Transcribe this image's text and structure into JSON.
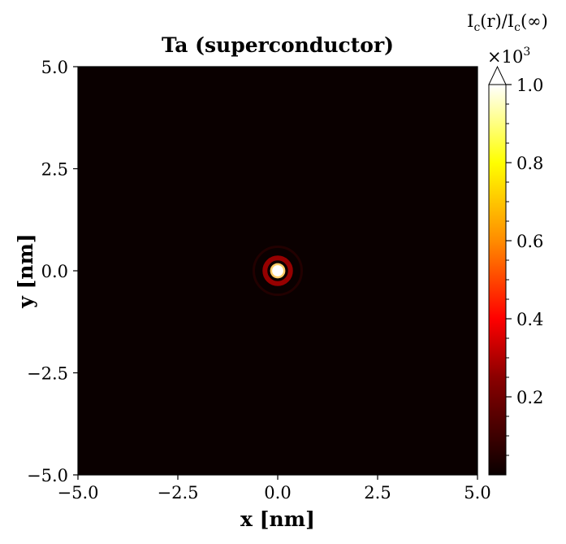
{
  "chart_data": {
    "type": "heatmap",
    "title": "Ta (superconductor)",
    "xlabel": "x [nm]",
    "ylabel": "y [nm]",
    "xlim": [
      -5.0,
      5.0
    ],
    "ylim": [
      -5.0,
      5.0
    ],
    "x_ticks": [
      "−5.0",
      "−2.5",
      "0.0",
      "2.5",
      "5.0"
    ],
    "x_tick_values": [
      -5.0,
      -2.5,
      0.0,
      2.5,
      5.0
    ],
    "y_ticks": [
      "5.0",
      "2.5",
      "0.0",
      "−2.5",
      "−5.0"
    ],
    "y_tick_values": [
      5.0,
      2.5,
      0.0,
      -2.5,
      -5.0
    ],
    "colorbar": {
      "label_main": "I",
      "label_sub": "c",
      "label_mid": "(r)/I",
      "label_sub2": "c",
      "label_end": "(∞)",
      "multiplier_base": "×10",
      "multiplier_exp": "3",
      "ticks": [
        "1.0",
        "0.8",
        "0.6",
        "0.4",
        "0.2"
      ],
      "tick_values": [
        1.0,
        0.8,
        0.6,
        0.4,
        0.2
      ],
      "range": [
        0.0,
        1.0
      ],
      "extend": "max",
      "colormap": "hot",
      "colors": [
        "#0a0000",
        "#8b0000",
        "#ff0000",
        "#ff8c00",
        "#ffff00",
        "#ffffff"
      ]
    },
    "features": [
      {
        "name": "core",
        "center": [
          0.0,
          0.0
        ],
        "radius_nm": 0.14,
        "value": 1.0
      },
      {
        "name": "ring",
        "center": [
          0.0,
          0.0
        ],
        "radius_nm": 0.32,
        "value": 0.12
      },
      {
        "name": "outer-ring",
        "center": [
          0.0,
          0.0
        ],
        "radius_nm": 0.6,
        "value": 0.03
      }
    ],
    "background_value": 0.0
  }
}
